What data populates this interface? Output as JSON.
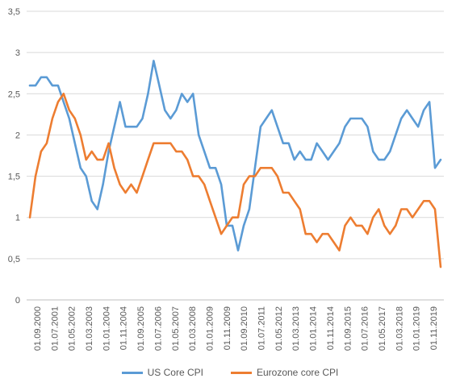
{
  "chart_data": {
    "type": "line",
    "title": "",
    "xlabel": "",
    "ylabel": "",
    "ylim": [
      0,
      3.5
    ],
    "y_ticks": [
      "0",
      "0,5",
      "1",
      "1,5",
      "2",
      "2,5",
      "3",
      "3,5"
    ],
    "x_tick_labels": [
      "01.09.2000",
      "01.07.2001",
      "01.05.2002",
      "01.03.2003",
      "01.01.2004",
      "01.11.2004",
      "01.09.2005",
      "01.07.2006",
      "01.05.2007",
      "01.03.2008",
      "01.01.2009",
      "01.11.2009",
      "01.09.2010",
      "01.07.2011",
      "01.05.2012",
      "01.03.2013",
      "01.01.2014",
      "01.11.2014",
      "01.09.2015",
      "01.07.2016",
      "01.05.2017",
      "01.03.2018",
      "01.01.2019",
      "01.11.2019"
    ],
    "grid": "horizontal",
    "legend_position": "bottom",
    "x_start": "2000-09",
    "x_step": "quarter",
    "series": [
      {
        "name": "US Core CPI",
        "color": "#5B9BD5",
        "values": [
          2.6,
          2.6,
          2.7,
          2.7,
          2.6,
          2.6,
          2.4,
          2.2,
          1.9,
          1.6,
          1.5,
          1.2,
          1.1,
          1.4,
          1.8,
          2.1,
          2.4,
          2.1,
          2.1,
          2.1,
          2.2,
          2.5,
          2.9,
          2.6,
          2.3,
          2.2,
          2.3,
          2.5,
          2.4,
          2.5,
          2.0,
          1.8,
          1.6,
          1.6,
          1.4,
          0.9,
          0.9,
          0.6,
          0.9,
          1.1,
          1.6,
          2.1,
          2.2,
          2.3,
          2.1,
          1.9,
          1.9,
          1.7,
          1.8,
          1.7,
          1.7,
          1.9,
          1.8,
          1.7,
          1.8,
          1.9,
          2.1,
          2.2,
          2.2,
          2.2,
          2.1,
          1.8,
          1.7,
          1.7,
          1.8,
          2.0,
          2.2,
          2.3,
          2.2,
          2.1,
          2.3,
          2.4,
          1.6,
          1.7
        ]
      },
      {
        "name": "Eurozone core CPI",
        "color": "#ED7D31",
        "values": [
          1.0,
          1.5,
          1.8,
          1.9,
          2.2,
          2.4,
          2.5,
          2.3,
          2.2,
          2.0,
          1.7,
          1.8,
          1.7,
          1.7,
          1.9,
          1.6,
          1.4,
          1.3,
          1.4,
          1.3,
          1.5,
          1.7,
          1.9,
          1.9,
          1.9,
          1.9,
          1.8,
          1.8,
          1.7,
          1.5,
          1.5,
          1.4,
          1.2,
          1.0,
          0.8,
          0.9,
          1.0,
          1.0,
          1.4,
          1.5,
          1.5,
          1.6,
          1.6,
          1.6,
          1.5,
          1.3,
          1.3,
          1.2,
          1.1,
          0.8,
          0.8,
          0.7,
          0.8,
          0.8,
          0.7,
          0.6,
          0.9,
          1.0,
          0.9,
          0.9,
          0.8,
          1.0,
          1.1,
          0.9,
          0.8,
          0.9,
          1.1,
          1.1,
          1.0,
          1.1,
          1.2,
          1.2,
          1.1,
          0.4
        ]
      }
    ]
  }
}
